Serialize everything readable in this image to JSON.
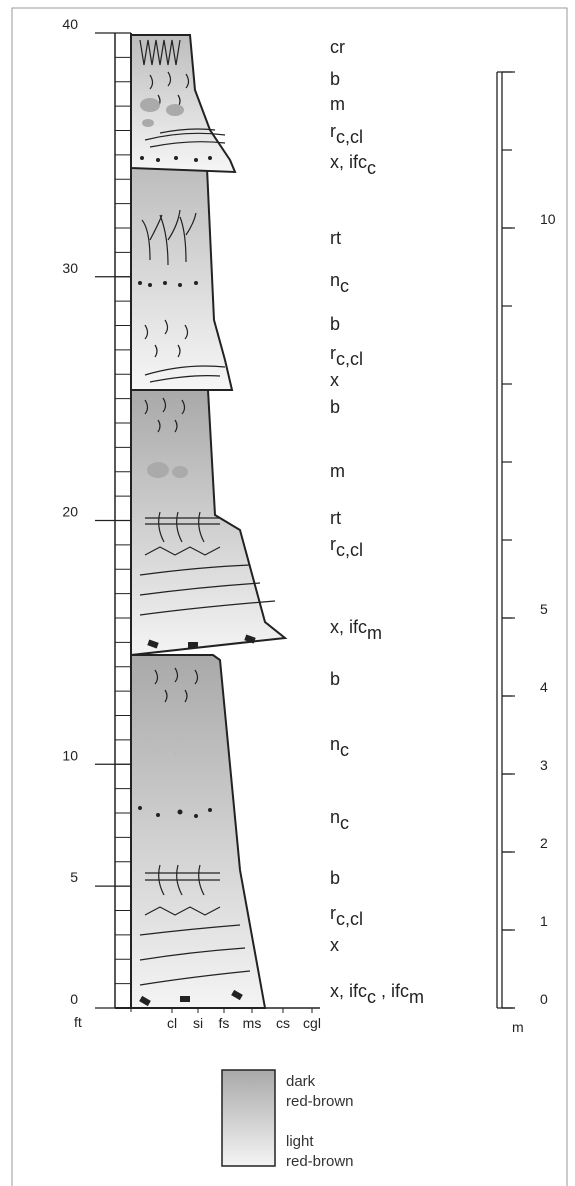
{
  "ft_axis": {
    "unit": "ft",
    "range": [
      0,
      40
    ],
    "ticks": [
      0,
      5,
      10,
      20,
      30,
      40
    ]
  },
  "m_axis": {
    "unit": "m",
    "range": [
      0,
      12
    ],
    "ticks": [
      0,
      1,
      2,
      3,
      4,
      5,
      10
    ]
  },
  "grain_sizes": [
    "cl",
    "si",
    "fs",
    "ms",
    "cs",
    "cgl"
  ],
  "annotations": [
    [
      {
        "t": "cr"
      }
    ],
    [
      {
        "t": "b"
      }
    ],
    [
      {
        "t": "m"
      }
    ],
    [
      {
        "t": "r"
      },
      {
        "s": "c,cl"
      }
    ],
    [
      {
        "t": "x,  ifc"
      },
      {
        "s": "c"
      }
    ],
    [
      {
        "t": "rt"
      }
    ],
    [
      {
        "t": "n"
      },
      {
        "s": "c"
      }
    ],
    [
      {
        "t": "b"
      }
    ],
    [
      {
        "t": "r"
      },
      {
        "s": "c,cl"
      }
    ],
    [
      {
        "t": "x"
      }
    ],
    [
      {
        "t": "b"
      }
    ],
    [
      {
        "t": "m"
      }
    ],
    [
      {
        "t": "rt"
      }
    ],
    [
      {
        "t": "r"
      },
      {
        "s": "c,cl"
      }
    ],
    [
      {
        "t": "x,  ifc"
      },
      {
        "s": "m"
      }
    ],
    [
      {
        "t": "b"
      }
    ],
    [
      {
        "t": "n"
      },
      {
        "s": "c"
      }
    ],
    [
      {
        "t": "n"
      },
      {
        "s": "c"
      }
    ],
    [
      {
        "t": "b"
      }
    ],
    [
      {
        "t": "r"
      },
      {
        "s": "c,cl"
      }
    ],
    [
      {
        "t": "x"
      }
    ],
    [
      {
        "t": "x,  ifc"
      },
      {
        "s": "c"
      },
      {
        "t": " , ifc"
      },
      {
        "s": "m"
      }
    ]
  ],
  "legend": {
    "dark": [
      "dark",
      "red-brown"
    ],
    "light": [
      "light",
      "red-brown"
    ]
  }
}
